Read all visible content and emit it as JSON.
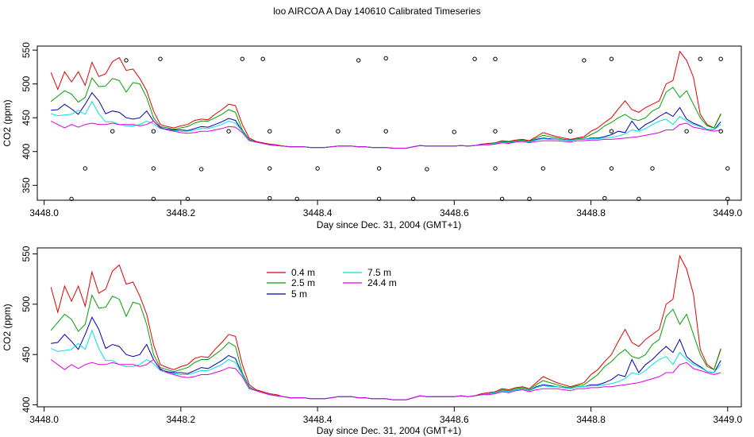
{
  "page": {
    "title": "loo AIRCOA A  Day 140610  Calibrated Timeseries"
  },
  "chart_data": [
    {
      "type": "line+scatter",
      "xlabel": "Day since Dec. 31, 2004 (GMT+1)",
      "ylabel": "CO2 (ppm)",
      "xlim": [
        3447.99,
        3449.02
      ],
      "ylim": [
        328,
        556
      ],
      "xticks": [
        3448.0,
        3448.2,
        3448.4,
        3448.6,
        3448.8,
        3449.0
      ],
      "xtick_labels": [
        "3448.0",
        "3448.2",
        "3448.4",
        "3448.6",
        "3448.8",
        "3449.0"
      ],
      "yticks": [
        350,
        400,
        450,
        500,
        550
      ],
      "ytick_labels": [
        "350",
        "400",
        "450",
        "500",
        "550"
      ],
      "grid": false,
      "markers": {
        "symbol": "open-circle",
        "points": [
          [
            3448.04,
            330
          ],
          [
            3448.06,
            375
          ],
          [
            3448.1,
            430
          ],
          [
            3448.12,
            535
          ],
          [
            3448.16,
            330
          ],
          [
            3448.16,
            375
          ],
          [
            3448.16,
            430
          ],
          [
            3448.17,
            537
          ],
          [
            3448.21,
            330
          ],
          [
            3448.23,
            374
          ],
          [
            3448.27,
            430
          ],
          [
            3448.29,
            537
          ],
          [
            3448.32,
            537
          ],
          [
            3448.33,
            430
          ],
          [
            3448.33,
            375
          ],
          [
            3448.33,
            331
          ],
          [
            3448.37,
            330
          ],
          [
            3448.4,
            375
          ],
          [
            3448.43,
            430
          ],
          [
            3448.46,
            535
          ],
          [
            3448.49,
            330
          ],
          [
            3448.49,
            375
          ],
          [
            3448.5,
            430
          ],
          [
            3448.5,
            538
          ],
          [
            3448.54,
            330
          ],
          [
            3448.56,
            374
          ],
          [
            3448.6,
            429
          ],
          [
            3448.63,
            537
          ],
          [
            3448.66,
            537
          ],
          [
            3448.66,
            430
          ],
          [
            3448.66,
            375
          ],
          [
            3448.67,
            330
          ],
          [
            3448.71,
            330
          ],
          [
            3448.73,
            375
          ],
          [
            3448.77,
            430
          ],
          [
            3448.79,
            535
          ],
          [
            3448.82,
            331
          ],
          [
            3448.83,
            375
          ],
          [
            3448.83,
            430
          ],
          [
            3448.83,
            537
          ],
          [
            3448.87,
            330
          ],
          [
            3448.89,
            375
          ],
          [
            3448.94,
            430
          ],
          [
            3448.96,
            537
          ],
          [
            3448.99,
            537
          ],
          [
            3448.99,
            430
          ],
          [
            3449.0,
            375
          ],
          [
            3449.0,
            330
          ]
        ]
      }
    },
    {
      "type": "line",
      "xlabel": "Day since Dec. 31, 2004 (GMT+1)",
      "ylabel": "CO2 (ppm)",
      "xlim": [
        3447.99,
        3449.02
      ],
      "ylim": [
        398,
        556
      ],
      "xticks": [
        3448.0,
        3448.2,
        3448.4,
        3448.6,
        3448.8,
        3449.0
      ],
      "xtick_labels": [
        "3448.0",
        "3448.2",
        "3448.4",
        "3448.6",
        "3448.8",
        "3449.0"
      ],
      "yticks": [
        400,
        450,
        500,
        550
      ],
      "ytick_labels": [
        "400",
        "450",
        "500",
        "550"
      ],
      "grid": false,
      "legend": {
        "placement": "top-left",
        "entries": [
          {
            "name": "0.4 m",
            "color": "#e00000"
          },
          {
            "name": "7.5 m",
            "color": "#00e0e0"
          },
          {
            "name": "2.5 m",
            "color": "#00a000"
          },
          {
            "name": "24.4 m",
            "color": "#e000e0"
          },
          {
            "name": "5 m",
            "color": "#0000b0"
          }
        ]
      }
    }
  ],
  "series_data": {
    "x": [
      3448.01,
      3448.02,
      3448.03,
      3448.04,
      3448.05,
      3448.06,
      3448.07,
      3448.08,
      3448.09,
      3448.1,
      3448.11,
      3448.12,
      3448.13,
      3448.14,
      3448.15,
      3448.16,
      3448.17,
      3448.18,
      3448.19,
      3448.2,
      3448.21,
      3448.22,
      3448.23,
      3448.24,
      3448.25,
      3448.26,
      3448.27,
      3448.28,
      3448.29,
      3448.3,
      3448.31,
      3448.32,
      3448.33,
      3448.34,
      3448.35,
      3448.36,
      3448.37,
      3448.38,
      3448.39,
      3448.4,
      3448.41,
      3448.42,
      3448.43,
      3448.44,
      3448.45,
      3448.46,
      3448.47,
      3448.48,
      3448.49,
      3448.5,
      3448.51,
      3448.52,
      3448.53,
      3448.54,
      3448.55,
      3448.56,
      3448.57,
      3448.58,
      3448.59,
      3448.6,
      3448.61,
      3448.62,
      3448.63,
      3448.64,
      3448.65,
      3448.66,
      3448.67,
      3448.68,
      3448.69,
      3448.7,
      3448.71,
      3448.72,
      3448.73,
      3448.74,
      3448.75,
      3448.76,
      3448.77,
      3448.78,
      3448.79,
      3448.8,
      3448.81,
      3448.82,
      3448.83,
      3448.84,
      3448.85,
      3448.86,
      3448.87,
      3448.88,
      3448.89,
      3448.9,
      3448.91,
      3448.92,
      3448.93,
      3448.94,
      3448.95,
      3448.96,
      3448.97,
      3448.98,
      3448.99
    ],
    "series": [
      {
        "name": "0.4 m",
        "color": "#e00000",
        "values": [
          517,
          492,
          518,
          503,
          518,
          498,
          532,
          511,
          515,
          533,
          539,
          520,
          522,
          508,
          490,
          460,
          440,
          437,
          435,
          438,
          440,
          446,
          448,
          447,
          455,
          462,
          470,
          468,
          440,
          420,
          415,
          413,
          411,
          410,
          408,
          407,
          407,
          407,
          406,
          406,
          406,
          407,
          408,
          408,
          408,
          407,
          407,
          406,
          406,
          406,
          405,
          405,
          405,
          407,
          409,
          408,
          408,
          408,
          408,
          408,
          409,
          408,
          409,
          411,
          412,
          413,
          416,
          415,
          417,
          418,
          416,
          422,
          428,
          425,
          422,
          420,
          418,
          420,
          422,
          430,
          435,
          443,
          450,
          463,
          475,
          462,
          458,
          465,
          470,
          475,
          500,
          505,
          548,
          535,
          510,
          455,
          440,
          435,
          456
        ]
      },
      {
        "name": "2.5 m",
        "color": "#00a000",
        "values": [
          474,
          482,
          490,
          485,
          473,
          480,
          509,
          496,
          497,
          508,
          505,
          488,
          502,
          500,
          480,
          450,
          437,
          435,
          433,
          435,
          437,
          442,
          445,
          445,
          450,
          455,
          462,
          458,
          432,
          418,
          414,
          412,
          410,
          409,
          408,
          407,
          407,
          407,
          406,
          406,
          406,
          407,
          408,
          408,
          408,
          407,
          407,
          406,
          406,
          406,
          405,
          405,
          405,
          407,
          409,
          408,
          408,
          408,
          408,
          408,
          409,
          408,
          409,
          410,
          411,
          412,
          415,
          414,
          416,
          417,
          415,
          420,
          424,
          422,
          420,
          418,
          417,
          419,
          420,
          425,
          430,
          438,
          443,
          450,
          455,
          448,
          446,
          450,
          460,
          465,
          488,
          495,
          480,
          490,
          470,
          450,
          438,
          435,
          455
        ]
      },
      {
        "name": "5 m",
        "color": "#0000b0",
        "values": [
          461,
          462,
          470,
          463,
          455,
          470,
          487,
          475,
          456,
          460,
          458,
          450,
          448,
          450,
          460,
          445,
          435,
          433,
          432,
          432,
          431,
          434,
          437,
          436,
          440,
          444,
          449,
          446,
          430,
          417,
          414,
          412,
          410,
          409,
          408,
          407,
          407,
          407,
          406,
          406,
          406,
          407,
          408,
          408,
          408,
          407,
          407,
          406,
          406,
          406,
          405,
          405,
          405,
          407,
          409,
          408,
          408,
          408,
          408,
          408,
          409,
          408,
          409,
          410,
          411,
          412,
          414,
          413,
          415,
          416,
          414,
          418,
          420,
          419,
          418,
          417,
          416,
          418,
          418,
          420,
          420,
          422,
          425,
          430,
          428,
          445,
          432,
          440,
          445,
          452,
          458,
          452,
          465,
          448,
          442,
          438,
          433,
          432,
          444
        ]
      },
      {
        "name": "7.5 m",
        "color": "#00e0e0",
        "values": [
          456,
          453,
          454,
          455,
          461,
          455,
          474,
          456,
          444,
          444,
          440,
          438,
          438,
          440,
          445,
          441,
          434,
          432,
          431,
          430,
          430,
          432,
          434,
          434,
          437,
          440,
          445,
          442,
          430,
          417,
          414,
          412,
          410,
          409,
          408,
          407,
          407,
          407,
          406,
          406,
          406,
          407,
          408,
          408,
          408,
          407,
          407,
          406,
          406,
          406,
          405,
          405,
          405,
          407,
          409,
          408,
          408,
          408,
          408,
          408,
          409,
          408,
          409,
          410,
          411,
          412,
          414,
          413,
          415,
          416,
          414,
          417,
          419,
          418,
          418,
          417,
          416,
          418,
          418,
          419,
          419,
          420,
          421,
          423,
          426,
          432,
          430,
          434,
          440,
          445,
          448,
          440,
          452,
          445,
          440,
          437,
          433,
          432,
          440
        ]
      },
      {
        "name": "24.4 m",
        "color": "#e000e0",
        "values": [
          445,
          440,
          435,
          440,
          436,
          440,
          442,
          440,
          440,
          442,
          440,
          440,
          440,
          438,
          440,
          445,
          436,
          432,
          430,
          428,
          427,
          428,
          430,
          430,
          432,
          434,
          437,
          436,
          428,
          416,
          414,
          412,
          410,
          409,
          408,
          407,
          407,
          407,
          406,
          406,
          406,
          407,
          408,
          408,
          408,
          407,
          407,
          406,
          406,
          406,
          405,
          405,
          405,
          407,
          409,
          408,
          408,
          408,
          408,
          408,
          409,
          408,
          409,
          410,
          410,
          411,
          413,
          412,
          414,
          415,
          413,
          415,
          416,
          416,
          416,
          415,
          414,
          416,
          416,
          417,
          417,
          418,
          418,
          419,
          420,
          421,
          422,
          424,
          426,
          428,
          432,
          432,
          440,
          442,
          436,
          434,
          432,
          430,
          432
        ]
      }
    ]
  }
}
